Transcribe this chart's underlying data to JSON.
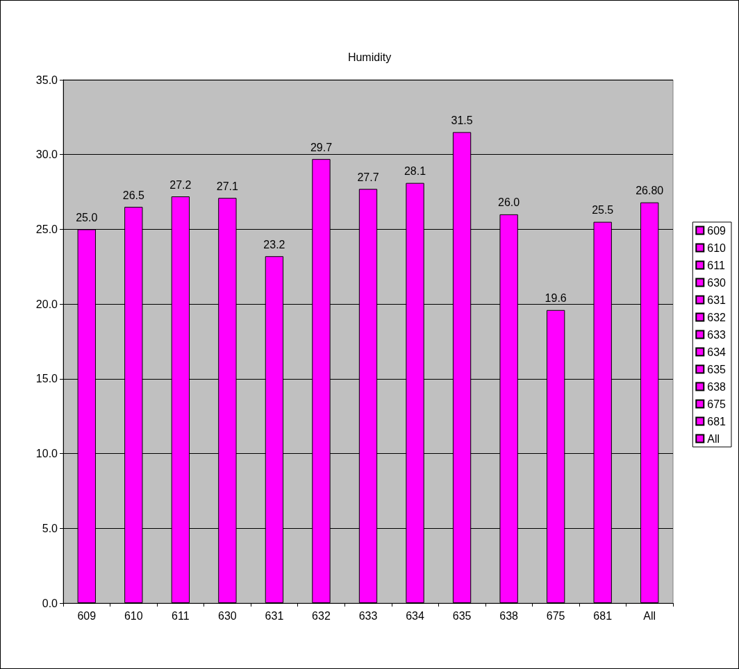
{
  "chart_data": {
    "type": "bar",
    "title": "Humidity",
    "categories": [
      "609",
      "610",
      "611",
      "630",
      "631",
      "632",
      "633",
      "634",
      "635",
      "638",
      "675",
      "681",
      "All"
    ],
    "series": [
      {
        "name": "609",
        "color": "#ff00ff",
        "values": [
          25.0,
          null,
          null,
          null,
          null,
          null,
          null,
          null,
          null,
          null,
          null,
          null,
          null
        ],
        "value_labels": [
          "25.0",
          null,
          null,
          null,
          null,
          null,
          null,
          null,
          null,
          null,
          null,
          null,
          null
        ]
      },
      {
        "name": "610",
        "color": "#ff00ff",
        "values": [
          null,
          26.5,
          null,
          null,
          null,
          null,
          null,
          null,
          null,
          null,
          null,
          null,
          null
        ],
        "value_labels": [
          null,
          "26.5",
          null,
          null,
          null,
          null,
          null,
          null,
          null,
          null,
          null,
          null,
          null
        ]
      },
      {
        "name": "611",
        "color": "#ff00ff",
        "values": [
          null,
          null,
          27.2,
          null,
          null,
          null,
          null,
          null,
          null,
          null,
          null,
          null,
          null
        ],
        "value_labels": [
          null,
          null,
          "27.2",
          null,
          null,
          null,
          null,
          null,
          null,
          null,
          null,
          null,
          null
        ]
      },
      {
        "name": "630",
        "color": "#ff00ff",
        "values": [
          null,
          null,
          null,
          27.1,
          null,
          null,
          null,
          null,
          null,
          null,
          null,
          null,
          null
        ],
        "value_labels": [
          null,
          null,
          null,
          "27.1",
          null,
          null,
          null,
          null,
          null,
          null,
          null,
          null,
          null
        ]
      },
      {
        "name": "631",
        "color": "#ff00ff",
        "values": [
          null,
          null,
          null,
          null,
          23.2,
          null,
          null,
          null,
          null,
          null,
          null,
          null,
          null
        ],
        "value_labels": [
          null,
          null,
          null,
          null,
          "23.2",
          null,
          null,
          null,
          null,
          null,
          null,
          null,
          null
        ]
      },
      {
        "name": "632",
        "color": "#ff00ff",
        "values": [
          null,
          null,
          null,
          null,
          null,
          29.7,
          null,
          null,
          null,
          null,
          null,
          null,
          null
        ],
        "value_labels": [
          null,
          null,
          null,
          null,
          null,
          "29.7",
          null,
          null,
          null,
          null,
          null,
          null,
          null
        ]
      },
      {
        "name": "633",
        "color": "#ff00ff",
        "values": [
          null,
          null,
          null,
          null,
          null,
          null,
          27.7,
          null,
          null,
          null,
          null,
          null,
          null
        ],
        "value_labels": [
          null,
          null,
          null,
          null,
          null,
          null,
          "27.7",
          null,
          null,
          null,
          null,
          null,
          null
        ]
      },
      {
        "name": "634",
        "color": "#ff00ff",
        "values": [
          null,
          null,
          null,
          null,
          null,
          null,
          null,
          28.1,
          null,
          null,
          null,
          null,
          null
        ],
        "value_labels": [
          null,
          null,
          null,
          null,
          null,
          null,
          null,
          "28.1",
          null,
          null,
          null,
          null,
          null
        ]
      },
      {
        "name": "635",
        "color": "#ff00ff",
        "values": [
          null,
          null,
          null,
          null,
          null,
          null,
          null,
          null,
          31.5,
          null,
          null,
          null,
          null
        ],
        "value_labels": [
          null,
          null,
          null,
          null,
          null,
          null,
          null,
          null,
          "31.5",
          null,
          null,
          null,
          null
        ]
      },
      {
        "name": "638",
        "color": "#ff00ff",
        "values": [
          null,
          null,
          null,
          null,
          null,
          null,
          null,
          null,
          null,
          26.0,
          null,
          null,
          null
        ],
        "value_labels": [
          null,
          null,
          null,
          null,
          null,
          null,
          null,
          null,
          null,
          "26.0",
          null,
          null,
          null
        ]
      },
      {
        "name": "675",
        "color": "#ff00ff",
        "values": [
          null,
          null,
          null,
          null,
          null,
          null,
          null,
          null,
          null,
          null,
          19.6,
          null,
          null
        ],
        "value_labels": [
          null,
          null,
          null,
          null,
          null,
          null,
          null,
          null,
          null,
          null,
          "19.6",
          null,
          null
        ]
      },
      {
        "name": "681",
        "color": "#ff00ff",
        "values": [
          null,
          null,
          null,
          null,
          null,
          null,
          null,
          null,
          null,
          null,
          null,
          25.5,
          null
        ],
        "value_labels": [
          null,
          null,
          null,
          null,
          null,
          null,
          null,
          null,
          null,
          null,
          null,
          "25.5",
          null
        ]
      },
      {
        "name": "All",
        "color": "#ff00ff",
        "values": [
          null,
          null,
          null,
          null,
          null,
          null,
          null,
          null,
          null,
          null,
          null,
          null,
          26.8
        ],
        "value_labels": [
          null,
          null,
          null,
          null,
          null,
          null,
          null,
          null,
          null,
          null,
          null,
          null,
          "26.80"
        ]
      }
    ],
    "ylim": [
      0,
      35
    ],
    "yticks": [
      {
        "value": 0,
        "label": "0.0"
      },
      {
        "value": 5,
        "label": "5.0"
      },
      {
        "value": 10,
        "label": "10.0"
      },
      {
        "value": 15,
        "label": "15.0"
      },
      {
        "value": 20,
        "label": "20.0"
      },
      {
        "value": 25,
        "label": "25.0"
      },
      {
        "value": 30,
        "label": "30.0"
      },
      {
        "value": 35,
        "label": "35.0"
      }
    ],
    "grid": "y",
    "legend": "right"
  }
}
